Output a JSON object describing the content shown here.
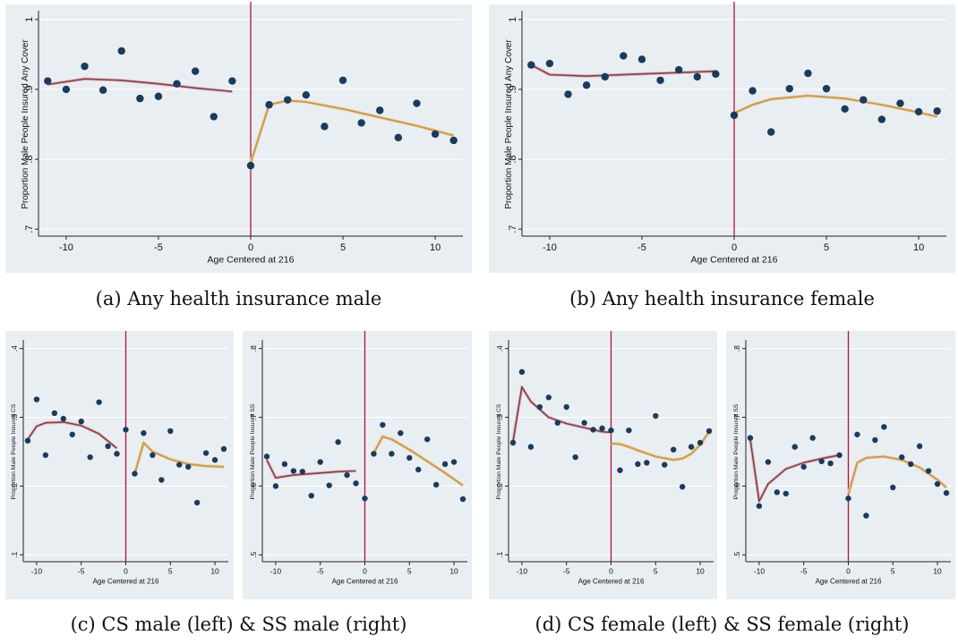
{
  "captions": {
    "a": "(a) Any health insurance male",
    "b": "(b) Any health insurance female",
    "c": "(c) CS male (left) & SS male (right)",
    "d": "(d) CS female (left) & SS female (right)"
  },
  "colors": {
    "background": "#e9eef2",
    "marker": "#1b3a5c",
    "cutoff": "#b0123f",
    "fit_left": "#8c3a4a",
    "fit_right": "#c9984a"
  },
  "chart_data": [
    {
      "id": "a",
      "type": "scatter",
      "xlabel": "Age Centered at 216",
      "ylabel": "Proportion Male People Insured Any Cover",
      "xlim": [
        -11.5,
        11.5
      ],
      "ylim": [
        0.69,
        1.01
      ],
      "xticks": [
        -10,
        -5,
        0,
        5,
        10
      ],
      "xtick_labels": [
        "-10",
        "-5",
        "0",
        "5",
        "10"
      ],
      "yticks": [
        0.7,
        0.8,
        0.9,
        1
      ],
      "ytick_labels": [
        ".7",
        ".8",
        ".9",
        "1"
      ],
      "cutoff": 0,
      "x": [
        -11,
        -10,
        -9,
        -8,
        -7,
        -6,
        -5,
        -4,
        -3,
        -2,
        -1,
        0,
        1,
        2,
        3,
        4,
        5,
        6,
        7,
        8,
        9,
        10,
        11
      ],
      "y": [
        0.912,
        0.9,
        0.933,
        0.899,
        0.955,
        0.887,
        0.89,
        0.908,
        0.926,
        0.861,
        0.912,
        0.791,
        0.878,
        0.885,
        0.892,
        0.847,
        0.913,
        0.852,
        0.87,
        0.831,
        0.88,
        0.836,
        0.827
      ],
      "fit_left": {
        "x": [
          -11,
          -9,
          -7,
          -5,
          -3,
          -1
        ],
        "y": [
          0.907,
          0.915,
          0.913,
          0.908,
          0.902,
          0.897
        ]
      },
      "fit_right": {
        "x": [
          0,
          1,
          2,
          3,
          5,
          7,
          9,
          11
        ],
        "y": [
          0.795,
          0.878,
          0.884,
          0.882,
          0.872,
          0.86,
          0.848,
          0.834
        ]
      }
    },
    {
      "id": "b",
      "type": "scatter",
      "xlabel": "Age Centered at 216",
      "ylabel": "Proportion Male People Insured Any Cover",
      "xlim": [
        -11.5,
        11.5
      ],
      "ylim": [
        0.69,
        1.01
      ],
      "xticks": [
        -10,
        -5,
        0,
        5,
        10
      ],
      "xtick_labels": [
        "-10",
        "-5",
        "0",
        "5",
        "10"
      ],
      "yticks": [
        0.7,
        0.8,
        0.9,
        1
      ],
      "ytick_labels": [
        ".7",
        ".8",
        ".9",
        "1"
      ],
      "cutoff": 0,
      "x": [
        -11,
        -10,
        -9,
        -8,
        -7,
        -6,
        -5,
        -4,
        -3,
        -2,
        -1,
        0,
        1,
        2,
        3,
        4,
        5,
        6,
        7,
        8,
        9,
        10,
        11
      ],
      "y": [
        0.935,
        0.937,
        0.893,
        0.906,
        0.918,
        0.948,
        0.943,
        0.913,
        0.928,
        0.918,
        0.922,
        0.863,
        0.898,
        0.839,
        0.901,
        0.923,
        0.901,
        0.872,
        0.885,
        0.857,
        0.88,
        0.868,
        0.869
      ],
      "fit_left": {
        "x": [
          -11,
          -10,
          -8,
          -5,
          -3,
          -1
        ],
        "y": [
          0.935,
          0.921,
          0.919,
          0.922,
          0.924,
          0.926
        ]
      },
      "fit_right": {
        "x": [
          0,
          1,
          2,
          4,
          6,
          8,
          10,
          11
        ],
        "y": [
          0.866,
          0.878,
          0.886,
          0.891,
          0.887,
          0.878,
          0.867,
          0.861
        ]
      }
    },
    {
      "id": "c1",
      "type": "scatter",
      "xlabel": "Age Centered at 216",
      "ylabel": "Proportion Male People Insured CS",
      "xlim": [
        -11.5,
        11.5
      ],
      "ylim": [
        0.09,
        0.41
      ],
      "xticks": [
        -10,
        -5,
        0,
        5,
        10
      ],
      "xtick_labels": [
        "-10",
        "-5",
        "0",
        "5",
        "10"
      ],
      "yticks": [
        0.1,
        0.2,
        0.3,
        0.4
      ],
      "ytick_labels": [
        ".1",
        ".2",
        ".3",
        ".4"
      ],
      "cutoff": 0,
      "x": [
        -11,
        -10,
        -9,
        -8,
        -7,
        -6,
        -5,
        -4,
        -3,
        -2,
        -1,
        0,
        1,
        2,
        3,
        4,
        5,
        6,
        7,
        8,
        9,
        10,
        11
      ],
      "y": [
        0.266,
        0.326,
        0.245,
        0.306,
        0.298,
        0.275,
        0.294,
        0.242,
        0.322,
        0.258,
        0.247,
        0.282,
        0.218,
        0.277,
        0.245,
        0.209,
        0.28,
        0.231,
        0.228,
        0.176,
        0.248,
        0.238,
        0.254
      ],
      "fit_left": {
        "x": [
          -11,
          -10,
          -9,
          -7,
          -5,
          -3,
          -1
        ],
        "y": [
          0.268,
          0.287,
          0.292,
          0.293,
          0.288,
          0.276,
          0.255
        ]
      },
      "fit_right": {
        "x": [
          1,
          2,
          3,
          5,
          7,
          9,
          11
        ],
        "y": [
          0.218,
          0.263,
          0.25,
          0.239,
          0.232,
          0.229,
          0.228
        ]
      }
    },
    {
      "id": "c2",
      "type": "scatter",
      "xlabel": "Age Centered at 216",
      "ylabel": "Proportion Male People Insured SS",
      "xlim": [
        -11.5,
        11.5
      ],
      "ylim": [
        0.49,
        0.81
      ],
      "xticks": [
        -10,
        -5,
        0,
        5,
        10
      ],
      "xtick_labels": [
        "-10",
        "-5",
        "0",
        "5",
        "10"
      ],
      "yticks": [
        0.5,
        0.6,
        0.7,
        0.8
      ],
      "ytick_labels": [
        ".5",
        ".6",
        ".7",
        ".8"
      ],
      "cutoff": 0,
      "x": [
        -11,
        -10,
        -9,
        -8,
        -7,
        -6,
        -5,
        -4,
        -3,
        -2,
        -1,
        0,
        1,
        2,
        3,
        4,
        5,
        6,
        7,
        8,
        9,
        10,
        11
      ],
      "y": [
        0.643,
        0.6,
        0.632,
        0.622,
        0.621,
        0.586,
        0.635,
        0.601,
        0.664,
        0.616,
        0.604,
        0.582,
        0.647,
        0.689,
        0.647,
        0.677,
        0.641,
        0.624,
        0.668,
        0.602,
        0.632,
        0.635,
        0.581
      ],
      "fit_left": {
        "x": [
          -11,
          -10,
          -8,
          -5,
          -3,
          -1
        ],
        "y": [
          0.638,
          0.612,
          0.616,
          0.619,
          0.621,
          0.622
        ]
      },
      "fit_right": {
        "x": [
          1,
          2,
          3,
          5,
          7,
          9,
          11
        ],
        "y": [
          0.648,
          0.672,
          0.668,
          0.653,
          0.636,
          0.619,
          0.601
        ]
      }
    },
    {
      "id": "d1",
      "type": "scatter",
      "xlabel": "Age Centered at 216",
      "ylabel": "Proportion Male People Insured CS",
      "xlim": [
        -11.5,
        11.5
      ],
      "ylim": [
        0.09,
        0.41
      ],
      "xticks": [
        -10,
        -5,
        0,
        5,
        10
      ],
      "xtick_labels": [
        "-10",
        "-5",
        "0",
        "5",
        "10"
      ],
      "yticks": [
        0.1,
        0.2,
        0.3,
        0.4
      ],
      "ytick_labels": [
        ".1",
        ".2",
        ".3",
        ".4"
      ],
      "cutoff": 0,
      "x": [
        -11,
        -10,
        -9,
        -8,
        -7,
        -6,
        -5,
        -4,
        -3,
        -2,
        -1,
        0,
        1,
        2,
        3,
        4,
        5,
        6,
        7,
        8,
        9,
        10,
        11
      ],
      "y": [
        0.263,
        0.366,
        0.257,
        0.315,
        0.329,
        0.292,
        0.315,
        0.242,
        0.292,
        0.282,
        0.284,
        0.281,
        0.223,
        0.281,
        0.232,
        0.234,
        0.302,
        0.231,
        0.253,
        0.199,
        0.257,
        0.263,
        0.28
      ],
      "fit_left": {
        "x": [
          -11,
          -10,
          -9,
          -7,
          -5,
          -3,
          -1,
          0
        ],
        "y": [
          0.265,
          0.344,
          0.323,
          0.3,
          0.291,
          0.285,
          0.279,
          0.278
        ]
      },
      "fit_right": {
        "x": [
          0,
          1,
          2,
          3,
          5,
          7,
          8,
          9,
          10,
          11
        ],
        "y": [
          0.262,
          0.261,
          0.257,
          0.252,
          0.243,
          0.238,
          0.24,
          0.247,
          0.26,
          0.279
        ]
      }
    },
    {
      "id": "d2",
      "type": "scatter",
      "xlabel": "Age Centered at 216",
      "ylabel": "Proportion Male People Insured SS",
      "xlim": [
        -11.5,
        11.5
      ],
      "ylim": [
        0.49,
        0.81
      ],
      "xticks": [
        -10,
        -5,
        0,
        5,
        10
      ],
      "xtick_labels": [
        "-10",
        "-5",
        "0",
        "5",
        "10"
      ],
      "yticks": [
        0.5,
        0.6,
        0.7,
        0.8
      ],
      "ytick_labels": [
        ".5",
        ".6",
        ".7",
        ".8"
      ],
      "cutoff": 0,
      "x": [
        -11,
        -10,
        -9,
        -8,
        -7,
        -6,
        -5,
        -4,
        -3,
        -2,
        -1,
        0,
        1,
        2,
        3,
        4,
        5,
        6,
        7,
        8,
        9,
        10,
        11
      ],
      "y": [
        0.67,
        0.571,
        0.635,
        0.591,
        0.589,
        0.657,
        0.628,
        0.67,
        0.636,
        0.633,
        0.645,
        0.582,
        0.675,
        0.557,
        0.667,
        0.686,
        0.598,
        0.642,
        0.632,
        0.658,
        0.622,
        0.603,
        0.59
      ],
      "fit_left": {
        "x": [
          -11,
          -10,
          -9,
          -7,
          -5,
          -3,
          -1
        ],
        "y": [
          0.668,
          0.578,
          0.603,
          0.625,
          0.634,
          0.64,
          0.645
        ]
      },
      "fit_right": {
        "x": [
          0,
          1,
          2,
          4,
          6,
          8,
          10,
          11
        ],
        "y": [
          0.588,
          0.634,
          0.641,
          0.643,
          0.638,
          0.627,
          0.609,
          0.598
        ]
      }
    }
  ]
}
